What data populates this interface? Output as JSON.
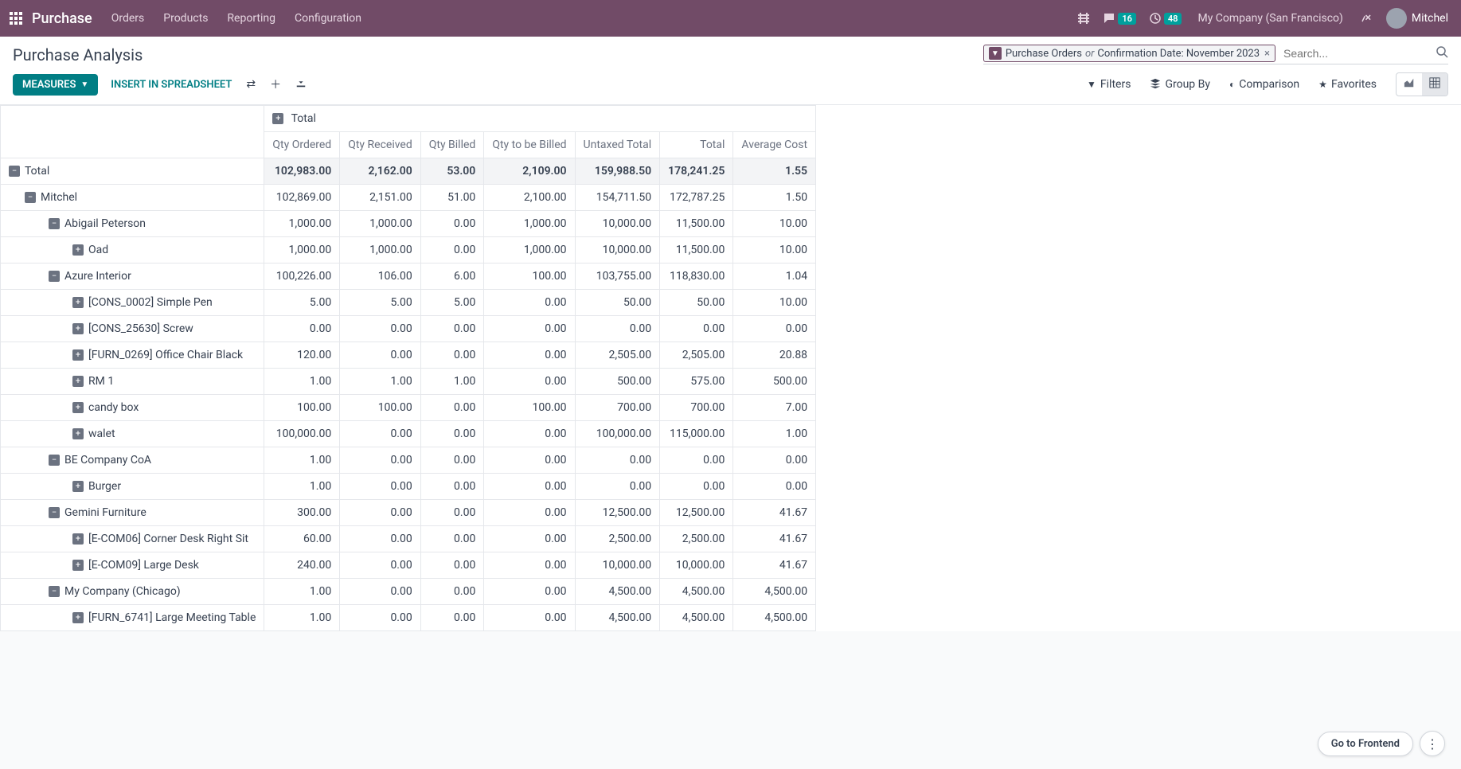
{
  "topbar": {
    "brand": "Purchase",
    "nav": [
      "Orders",
      "Products",
      "Reporting",
      "Configuration"
    ],
    "msg_badge": "16",
    "clock_badge": "48",
    "company": "My Company (San Francisco)",
    "user": "Mitchel"
  },
  "header": {
    "title": "Purchase Analysis",
    "search_tag_a": "Purchase Orders",
    "search_tag_or": "or",
    "search_tag_b": "Confirmation Date: November 2023",
    "search_placeholder": "Search..."
  },
  "toolbar": {
    "measures": "MEASURES",
    "insert": "INSERT IN SPREADSHEET",
    "filters": "Filters",
    "groupby": "Group By",
    "comparison": "Comparison",
    "favorites": "Favorites"
  },
  "pivot": {
    "total_header": "Total",
    "columns": [
      "Qty Ordered",
      "Qty Received",
      "Qty Billed",
      "Qty to be Billed",
      "Untaxed Total",
      "Total",
      "Average Cost"
    ],
    "rows": [
      {
        "level": 0,
        "exp": "minus",
        "label": "Total",
        "values": [
          "102,983.00",
          "2,162.00",
          "53.00",
          "2,109.00",
          "159,988.50",
          "178,241.25",
          "1.55"
        ]
      },
      {
        "level": 1,
        "exp": "minus",
        "label": "Mitchel",
        "values": [
          "102,869.00",
          "2,151.00",
          "51.00",
          "2,100.00",
          "154,711.50",
          "172,787.25",
          "1.50"
        ]
      },
      {
        "level": 2,
        "exp": "minus",
        "label": "Abigail Peterson",
        "values": [
          "1,000.00",
          "1,000.00",
          "0.00",
          "1,000.00",
          "10,000.00",
          "11,500.00",
          "10.00"
        ]
      },
      {
        "level": 3,
        "exp": "plus",
        "label": "Oad",
        "values": [
          "1,000.00",
          "1,000.00",
          "0.00",
          "1,000.00",
          "10,000.00",
          "11,500.00",
          "10.00"
        ]
      },
      {
        "level": 2,
        "exp": "minus",
        "label": "Azure Interior",
        "values": [
          "100,226.00",
          "106.00",
          "6.00",
          "100.00",
          "103,755.00",
          "118,830.00",
          "1.04"
        ]
      },
      {
        "level": 3,
        "exp": "plus",
        "label": "[CONS_0002] Simple Pen",
        "values": [
          "5.00",
          "5.00",
          "5.00",
          "0.00",
          "50.00",
          "50.00",
          "10.00"
        ]
      },
      {
        "level": 3,
        "exp": "plus",
        "label": "[CONS_25630] Screw",
        "values": [
          "0.00",
          "0.00",
          "0.00",
          "0.00",
          "0.00",
          "0.00",
          "0.00"
        ]
      },
      {
        "level": 3,
        "exp": "plus",
        "label": "[FURN_0269] Office Chair Black",
        "values": [
          "120.00",
          "0.00",
          "0.00",
          "0.00",
          "2,505.00",
          "2,505.00",
          "20.88"
        ]
      },
      {
        "level": 3,
        "exp": "plus",
        "label": "RM 1",
        "values": [
          "1.00",
          "1.00",
          "1.00",
          "0.00",
          "500.00",
          "575.00",
          "500.00"
        ]
      },
      {
        "level": 3,
        "exp": "plus",
        "label": "candy box",
        "values": [
          "100.00",
          "100.00",
          "0.00",
          "100.00",
          "700.00",
          "700.00",
          "7.00"
        ]
      },
      {
        "level": 3,
        "exp": "plus",
        "label": "walet",
        "values": [
          "100,000.00",
          "0.00",
          "0.00",
          "0.00",
          "100,000.00",
          "115,000.00",
          "1.00"
        ]
      },
      {
        "level": 2,
        "exp": "minus",
        "label": "BE Company CoA",
        "values": [
          "1.00",
          "0.00",
          "0.00",
          "0.00",
          "0.00",
          "0.00",
          "0.00"
        ]
      },
      {
        "level": 3,
        "exp": "plus",
        "label": "Burger",
        "values": [
          "1.00",
          "0.00",
          "0.00",
          "0.00",
          "0.00",
          "0.00",
          "0.00"
        ]
      },
      {
        "level": 2,
        "exp": "minus",
        "label": "Gemini Furniture",
        "values": [
          "300.00",
          "0.00",
          "0.00",
          "0.00",
          "12,500.00",
          "12,500.00",
          "41.67"
        ]
      },
      {
        "level": 3,
        "exp": "plus",
        "label": "[E-COM06] Corner Desk Right Sit",
        "values": [
          "60.00",
          "0.00",
          "0.00",
          "0.00",
          "2,500.00",
          "2,500.00",
          "41.67"
        ]
      },
      {
        "level": 3,
        "exp": "plus",
        "label": "[E-COM09] Large Desk",
        "values": [
          "240.00",
          "0.00",
          "0.00",
          "0.00",
          "10,000.00",
          "10,000.00",
          "41.67"
        ]
      },
      {
        "level": 2,
        "exp": "minus",
        "label": "My Company (Chicago)",
        "values": [
          "1.00",
          "0.00",
          "0.00",
          "0.00",
          "4,500.00",
          "4,500.00",
          "4,500.00"
        ]
      },
      {
        "level": 3,
        "exp": "plus",
        "label": "[FURN_6741] Large Meeting Table",
        "values": [
          "1.00",
          "0.00",
          "0.00",
          "0.00",
          "4,500.00",
          "4,500.00",
          "4,500.00"
        ]
      }
    ]
  },
  "float": {
    "frontend": "Go to Frontend"
  }
}
